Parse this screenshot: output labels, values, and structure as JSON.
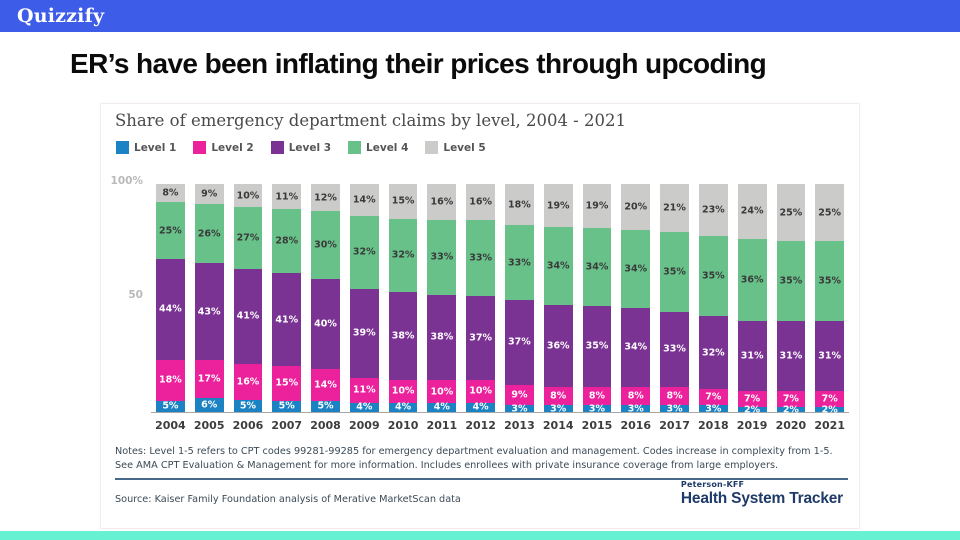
{
  "header": {
    "brand": "Quizzify"
  },
  "slide": {
    "title": "ER’s have been inflating their prices through upcoding"
  },
  "chart": {
    "title": "Share of emergency department claims by level, 2004 - 2021",
    "y_axis": {
      "top_label": "100%",
      "mid_label": "50"
    },
    "legend": [
      {
        "label": "Level 1",
        "color": "#1b82c4"
      },
      {
        "label": "Level 2",
        "color": "#ec219c"
      },
      {
        "label": "Level 3",
        "color": "#7a3392"
      },
      {
        "label": "Level 4",
        "color": "#67c189"
      },
      {
        "label": "Level 5",
        "color": "#cbcbca"
      }
    ]
  },
  "chart_data": {
    "type": "bar",
    "stacked": true,
    "title": "Share of emergency department claims by level, 2004 - 2021",
    "ylim": [
      0,
      100
    ],
    "grid": false,
    "legend_position": "top-left",
    "categories": [
      "2004",
      "2005",
      "2006",
      "2007",
      "2008",
      "2009",
      "2010",
      "2011",
      "2012",
      "2013",
      "2014",
      "2015",
      "2016",
      "2017",
      "2018",
      "2019",
      "2020",
      "2021"
    ],
    "series": [
      {
        "name": "Level 1",
        "color": "#1b82c4",
        "label_color": "#ffffff",
        "values": [
          5,
          6,
          5,
          5,
          5,
          4,
          4,
          4,
          4,
          3,
          3,
          3,
          3,
          3,
          3,
          2,
          2,
          2
        ]
      },
      {
        "name": "Level 2",
        "color": "#ec219c",
        "label_color": "#ffffff",
        "values": [
          18,
          17,
          16,
          15,
          14,
          11,
          10,
          10,
          10,
          9,
          8,
          8,
          8,
          8,
          7,
          7,
          7,
          7
        ]
      },
      {
        "name": "Level 3",
        "color": "#7a3392",
        "label_color": "#ffffff",
        "values": [
          44,
          43,
          41,
          41,
          40,
          39,
          38,
          38,
          37,
          37,
          36,
          35,
          34,
          33,
          32,
          31,
          31,
          31
        ]
      },
      {
        "name": "Level 4",
        "color": "#67c189",
        "label_color": "#3a3a3a",
        "values": [
          25,
          26,
          27,
          28,
          30,
          32,
          32,
          33,
          33,
          33,
          34,
          34,
          34,
          35,
          35,
          36,
          35,
          35
        ]
      },
      {
        "name": "Level 5",
        "color": "#cbcbca",
        "label_color": "#3a3a3a",
        "values": [
          8,
          9,
          10,
          11,
          12,
          14,
          15,
          16,
          16,
          18,
          19,
          19,
          20,
          21,
          23,
          24,
          25,
          25
        ]
      }
    ]
  },
  "footer": {
    "notes_line": "Notes: Level 1-5 refers to CPT codes 99281-99285 for emergency department evaluation and management. Codes increase in complexity from 1-5. See AMA CPT Evaluation & Management for more information. Includes enrollees with private insurance coverage from large employers.",
    "source": "Source: Kaiser Family Foundation analysis of Merative MarketScan data",
    "logo_top": "Peterson-KFF",
    "logo_bottom": "Health System Tracker"
  }
}
